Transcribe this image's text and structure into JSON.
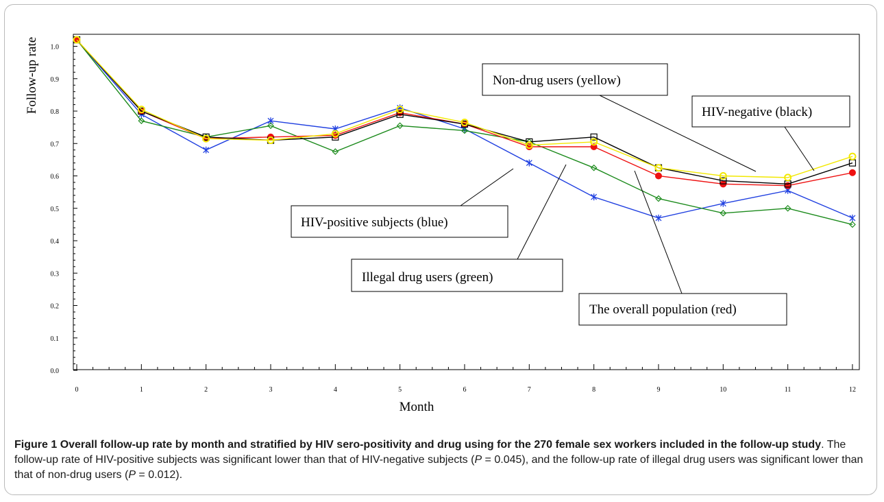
{
  "chart_data": {
    "type": "line",
    "ylabel": "Follow-up rate",
    "xlabel": "Month",
    "x": [
      0,
      1,
      2,
      3,
      4,
      5,
      6,
      7,
      8,
      9,
      10,
      11,
      12
    ],
    "ylim": [
      0.0,
      1.02
    ],
    "yticks": [
      "0.0",
      "0.1",
      "0.2",
      "0.3",
      "0.4",
      "0.5",
      "0.6",
      "0.7",
      "0.8",
      "0.9",
      "1.0"
    ],
    "xticks": [
      "0",
      "1",
      "2",
      "3",
      "4",
      "5",
      "6",
      "7",
      "8",
      "9",
      "10",
      "11",
      "12"
    ],
    "grid": false,
    "series": [
      {
        "name": "HIV-positive subjects (blue)",
        "color": "#1f3fe0",
        "marker": "asterisk",
        "values": [
          1.02,
          0.79,
          0.68,
          0.77,
          0.745,
          0.81,
          0.745,
          0.64,
          0.535,
          0.47,
          0.515,
          0.555,
          0.47
        ]
      },
      {
        "name": "Illegal drug users (green)",
        "color": "#1b8a1b",
        "marker": "diamond",
        "values": [
          1.02,
          0.77,
          0.72,
          0.755,
          0.675,
          0.755,
          0.74,
          0.705,
          0.625,
          0.53,
          0.485,
          0.5,
          0.45
        ]
      },
      {
        "name": "The overall population (red)",
        "color": "#ee1111",
        "marker": "filled-circle",
        "values": [
          1.02,
          0.8,
          0.715,
          0.72,
          0.725,
          0.795,
          0.76,
          0.69,
          0.69,
          0.6,
          0.575,
          0.57,
          0.61
        ]
      },
      {
        "name": "HIV-negative (black)",
        "color": "#000000",
        "marker": "square",
        "values": [
          1.02,
          0.8,
          0.72,
          0.71,
          0.72,
          0.79,
          0.76,
          0.705,
          0.72,
          0.625,
          0.585,
          0.575,
          0.64
        ]
      },
      {
        "name": "Non-drug users (yellow)",
        "color": "#f2e800",
        "marker": "open-circle",
        "values": [
          1.02,
          0.805,
          0.715,
          0.71,
          0.73,
          0.805,
          0.765,
          0.695,
          0.705,
          0.625,
          0.6,
          0.595,
          0.66
        ]
      }
    ],
    "annotations": [
      "Non-drug users (yellow)",
      "HIV-negative (black)",
      "HIV-positive subjects (blue)",
      "Illegal drug users (green)",
      "The overall population (red)"
    ]
  },
  "caption": {
    "figure_label": "Figure 1",
    "bold_text": "Overall follow-up rate by month and stratified by HIV sero-positivity and drug using for the 270 female sex workers included in the follow-up study",
    "text_1": ". The follow-up rate of HIV-positive subjects was significant lower than that of HIV-negative subjects (",
    "p_symbol": "P",
    "p1_value": " = 0.045), and the follow-up rate of illegal drug users was significant lower than that of non-drug users (",
    "p2_value": " = 0.012)."
  }
}
